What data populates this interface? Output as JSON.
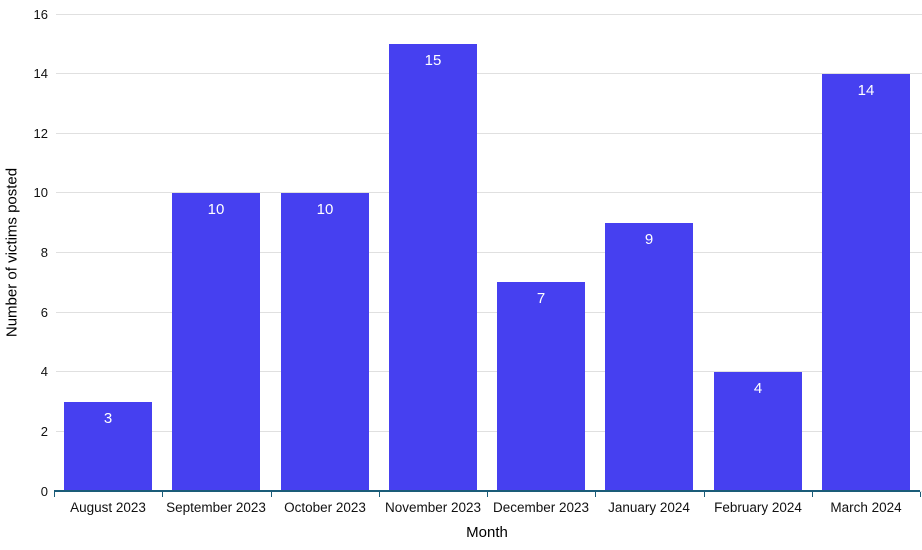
{
  "chart_data": {
    "type": "bar",
    "title": "",
    "categories": [
      "August 2023",
      "September 2023",
      "October 2023",
      "November 2023",
      "December 2023",
      "January 2024",
      "February 2024",
      "March 2024"
    ],
    "values": [
      3,
      10,
      10,
      15,
      7,
      9,
      4,
      14
    ],
    "xlabel": "Month",
    "ylabel": "Number of victims posted",
    "ylim": [
      0,
      16
    ],
    "yticks": [
      0,
      2,
      4,
      6,
      8,
      10,
      12,
      14,
      16
    ],
    "grid": true,
    "legend": "none",
    "bar_labels_shown": true,
    "colors": {
      "bar": "#4640f0",
      "bar_label": "#ffffff",
      "gridline": "#e0e0e0",
      "axis_line": "#1a5c78",
      "tick_text": "#111111",
      "title_text": "#000000"
    }
  }
}
